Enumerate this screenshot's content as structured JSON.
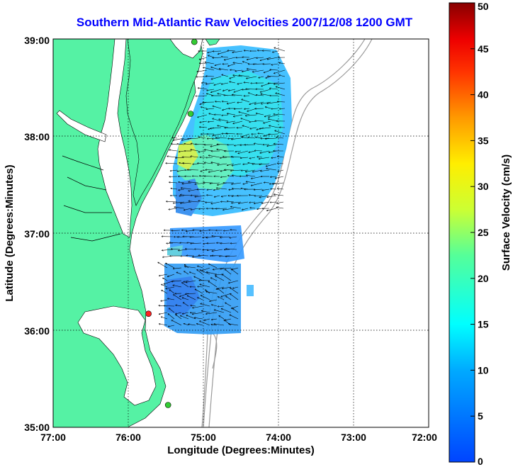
{
  "title": "Southern Mid-Atlantic Raw Velocities 2007/12/08 1200 GMT",
  "map": {
    "xlabel": "Longitude (Degrees:Minutes)",
    "ylabel": "Latitude (Degrees:Minutes)",
    "lon_ticks": [
      "77:00",
      "76:00",
      "75:00",
      "74:00",
      "73:00",
      "72:00"
    ],
    "lat_ticks": [
      "39:00",
      "38:00",
      "37:00",
      "36:00",
      "35:00"
    ],
    "lon_range": [
      -77,
      -72
    ],
    "lat_range": [
      35,
      39
    ],
    "land_color": "#55f2a4",
    "ocean_color": "#ffffff"
  },
  "colorbar": {
    "label": "Surface Velocity (cm/s)",
    "ticks": [
      "50",
      "45",
      "40",
      "35",
      "30",
      "25",
      "20",
      "15",
      "10",
      "5",
      "0"
    ],
    "range": [
      0,
      50
    ]
  },
  "stations": [
    {
      "lon": -75.12,
      "lat": 38.97,
      "color": "#33cc33"
    },
    {
      "lon": -75.17,
      "lat": 38.23,
      "color": "#33cc33"
    },
    {
      "lon": -75.73,
      "lat": 36.17,
      "color": "#ff2020"
    },
    {
      "lon": -75.47,
      "lat": 35.23,
      "color": "#33cc33"
    }
  ]
}
